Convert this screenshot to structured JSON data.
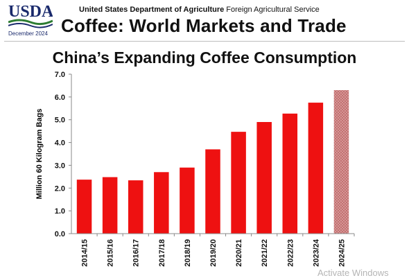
{
  "header": {
    "logo_text": "USDA",
    "date": "December 2024",
    "agency_bold": "United States Department of Agriculture",
    "agency_rest": "Foreign Agricultural Service",
    "report_title": "Coffee: World Markets and Trade"
  },
  "watermark": "Activate Windows",
  "chart_data": {
    "type": "bar",
    "title": "China’s Expanding Coffee Consumption",
    "xlabel": "",
    "ylabel": "Million 60 Kilogram Bags",
    "ylim": [
      0,
      7
    ],
    "yticks": [
      "0.0",
      "1.0",
      "2.0",
      "3.0",
      "4.0",
      "5.0",
      "6.0",
      "7.0"
    ],
    "categories": [
      "2014/15",
      "2015/16",
      "2016/17",
      "2017/18",
      "2018/19",
      "2019/20",
      "2020/21",
      "2021/22",
      "2022/23",
      "2023/24",
      "2024/25"
    ],
    "values": [
      2.37,
      2.48,
      2.34,
      2.7,
      2.9,
      3.7,
      4.47,
      4.9,
      5.27,
      5.75,
      6.3
    ],
    "bar_color": "#ee1111",
    "forecast_color": "#d99a9a",
    "forecast_index": 10,
    "grid": false,
    "legend": "none"
  }
}
